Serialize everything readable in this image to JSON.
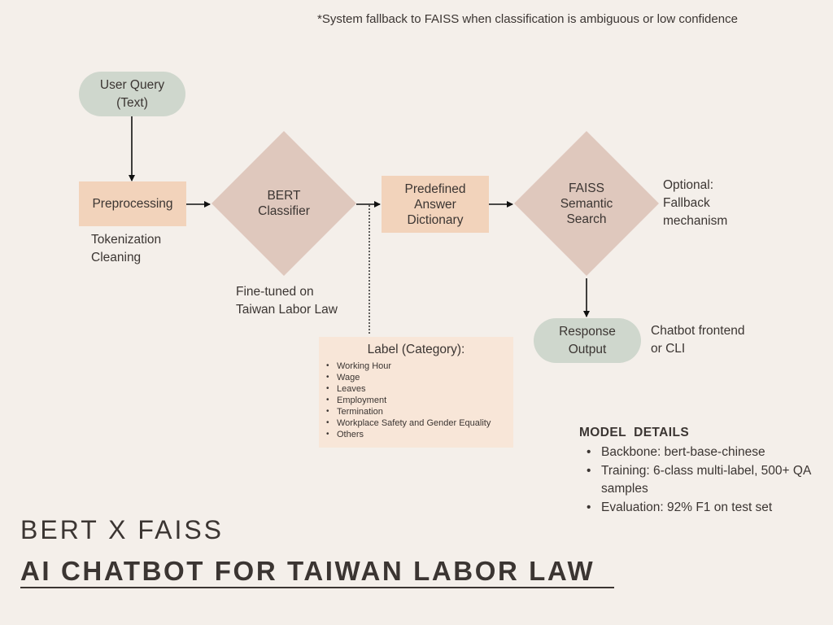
{
  "note": "*System fallback to FAISS when classification is ambiguous or low confidence",
  "nodes": {
    "user_query": "User Query\n(Text)",
    "preprocessing": "Preprocessing",
    "bert": "BERT\nClassifier",
    "dictionary": "Predefined\nAnswer\nDictionary",
    "faiss": "FAISS\nSemantic\nSearch",
    "response": "Response\nOutput"
  },
  "annotations": {
    "preprocessing": "Tokenization\nCleaning",
    "bert": "Fine-tuned on\nTaiwan Labor Law",
    "faiss": "Optional:\nFallback\nmechanism",
    "response": "Chatbot frontend\nor CLI"
  },
  "label_box": {
    "title": "Label (Category):",
    "items": [
      "Working Hour",
      "Wage",
      "Leaves",
      "Employment",
      "Termination",
      "Workplace Safety and Gender Equality",
      "Others"
    ]
  },
  "model_details": {
    "title": "MODEL  DETAILS",
    "items": [
      "Backbone: bert-base-chinese",
      "Training: 6-class multi-label, 500+ QA samples",
      "Evaluation: 92% F1 on test set"
    ]
  },
  "titles": {
    "subtitle": "BERT X FAISS",
    "main": "AI CHATBOT FOR TAIWAN LABOR LAW"
  },
  "colors": {
    "background": "#f4efea",
    "sage": "#cfd7cd",
    "peach": "#f2d3bb",
    "rose": "#dfc8bd",
    "label_box": "#f8e6d8",
    "text": "#3b3532"
  }
}
